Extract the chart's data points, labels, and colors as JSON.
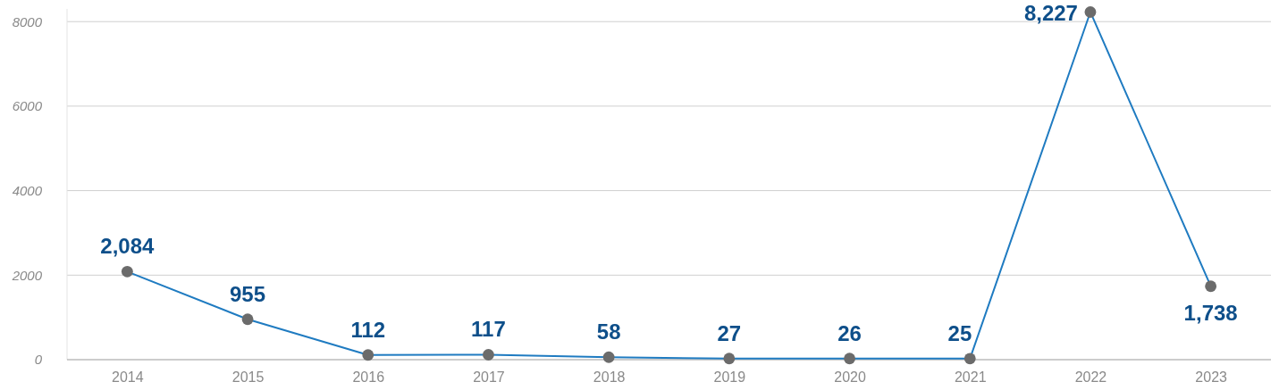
{
  "chart_data": {
    "type": "line",
    "categories": [
      "2014",
      "2015",
      "2016",
      "2017",
      "2018",
      "2019",
      "2020",
      "2021",
      "2022",
      "2023"
    ],
    "series": [
      {
        "color": "#1f7bc1",
        "values": [
          2084,
          955,
          112,
          117,
          58,
          27,
          26,
          25,
          8227,
          1738
        ],
        "value_labels": [
          "2,084",
          "955",
          "112",
          "117",
          "58",
          "27",
          "26",
          "25",
          "8,227",
          "1,738"
        ]
      }
    ],
    "ylim": [
      0,
      8300
    ],
    "yticks": [
      0,
      2000,
      4000,
      6000,
      8000
    ],
    "grid": "y",
    "marker": "circle",
    "line_style": "solid"
  }
}
